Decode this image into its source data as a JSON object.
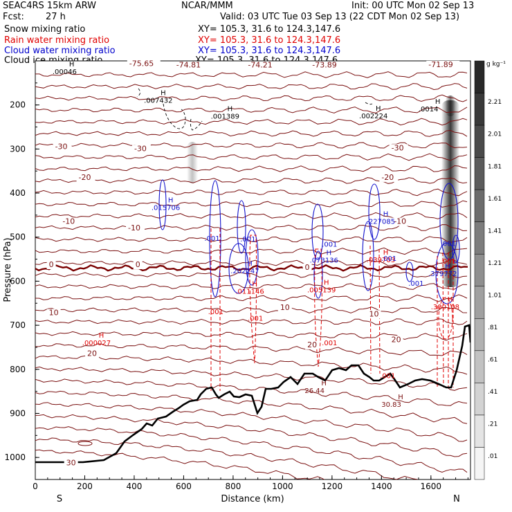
{
  "header": {
    "model": "SEAC4RS 15km ARW",
    "org": "NCAR/MMM",
    "init": "Init: 00 UTC Mon 02 Sep 13",
    "fcst_label": "Fcst:",
    "fcst_value": "27 h",
    "valid": "Valid: 03 UTC Tue 03 Sep 13 (22 CDT Mon 02 Sep 13)",
    "fields": [
      {
        "name": "Snow mixing ratio",
        "xy": "XY= 105.3, 31.6 to 124.3,147.6",
        "color": "#000000"
      },
      {
        "name": "Rain water mixing ratio",
        "xy": "XY= 105.3, 31.6 to 124.3,147.6",
        "color": "#e00000"
      },
      {
        "name": "Cloud water mixing ratio",
        "xy": "XY= 105.3, 31.6 to 124.3,147.6",
        "color": "#0000cc"
      },
      {
        "name": "Cloud ice mixing ratio",
        "xy": "XY= 105.3, 31.6 to 124.3,147.6",
        "color": "#000000"
      }
    ]
  },
  "colors": {
    "temperature": "#7a1010",
    "zero_isotherm": "#7a0000",
    "rain": "#e00000",
    "cloud_water": "#1010cc",
    "terrain": "#000000"
  },
  "chart_data": {
    "type": "cross-section",
    "xlabel": "Distance (km)",
    "ylabel": "Pressure (hPa)",
    "xlim": [
      0,
      1760
    ],
    "ylim": [
      1050,
      100
    ],
    "x_ticks": [
      0,
      200,
      400,
      600,
      800,
      1000,
      1200,
      1400,
      1600
    ],
    "y_ticks": [
      200,
      300,
      400,
      500,
      600,
      700,
      800,
      900,
      1000
    ],
    "endpoints": {
      "left": "S",
      "right": "N"
    },
    "colorbar": {
      "unit": "g kg⁻¹",
      "labels": [
        "2.21",
        "2.01",
        "1.81",
        "1.61",
        "1.41",
        "1.21",
        "1.01",
        ".81",
        ".61",
        ".41",
        ".21",
        ".01"
      ]
    },
    "isotherm_labels": [
      {
        "text": "-75.65",
        "x": 380,
        "p": 112
      },
      {
        "text": "-74.81",
        "x": 570,
        "p": 115
      },
      {
        "text": "-74.21",
        "x": 860,
        "p": 115
      },
      {
        "text": "-73.89",
        "x": 1120,
        "p": 115
      },
      {
        "text": "-71.89",
        "x": 1590,
        "p": 114
      },
      {
        "text": "-30",
        "x": 80,
        "p": 300
      },
      {
        "text": "-30",
        "x": 400,
        "p": 305
      },
      {
        "text": "-30",
        "x": 1440,
        "p": 303
      },
      {
        "text": "-20",
        "x": 175,
        "p": 370
      },
      {
        "text": "-20",
        "x": 1400,
        "p": 370
      },
      {
        "text": "-10",
        "x": 110,
        "p": 470
      },
      {
        "text": "-10",
        "x": 375,
        "p": 485
      },
      {
        "text": "-10",
        "x": 1450,
        "p": 470
      },
      {
        "text": "0",
        "x": 55,
        "p": 568
      },
      {
        "text": "0",
        "x": 405,
        "p": 568
      },
      {
        "text": "0",
        "x": 1090,
        "p": 574
      },
      {
        "text": "10",
        "x": 55,
        "p": 677
      },
      {
        "text": "10",
        "x": 990,
        "p": 665
      },
      {
        "text": "10",
        "x": 1350,
        "p": 680
      },
      {
        "text": "20",
        "x": 210,
        "p": 770
      },
      {
        "text": "20",
        "x": 1100,
        "p": 750
      },
      {
        "text": "20",
        "x": 1440,
        "p": 738
      },
      {
        "text": "30",
        "x": 125,
        "p": 1018
      }
    ],
    "maxima": [
      {
        "text": ".00046",
        "x": 120,
        "p": 130,
        "field": "cloud_ice"
      },
      {
        "text": ".007432",
        "x": 490,
        "p": 195,
        "field": "cloud_ice"
      },
      {
        "text": ".001389",
        "x": 760,
        "p": 231,
        "field": "cloud_ice"
      },
      {
        "text": ".002224",
        "x": 1360,
        "p": 230,
        "field": "cloud_ice"
      },
      {
        "text": ".0014",
        "x": 1600,
        "p": 215,
        "field": "cloud_ice"
      },
      {
        "text": ".015706",
        "x": 520,
        "p": 438,
        "field": "cloud_water"
      },
      {
        "text": ".202247",
        "x": 840,
        "p": 582,
        "field": "cloud_water"
      },
      {
        "text": ".073136",
        "x": 1160,
        "p": 558,
        "field": "cloud_water"
      },
      {
        "text": ".227085",
        "x": 1390,
        "p": 470,
        "field": "cloud_water"
      },
      {
        "text": ".379772",
        "x": 1640,
        "p": 588,
        "field": "cloud_water"
      },
      {
        "text": ".000027",
        "x": 240,
        "p": 745,
        "field": "rain"
      },
      {
        "text": ".011146",
        "x": 860,
        "p": 628,
        "field": "rain"
      },
      {
        "text": ".005139",
        "x": 1150,
        "p": 625,
        "field": "rain"
      },
      {
        "text": ".039703",
        "x": 1390,
        "p": 557,
        "field": "rain"
      },
      {
        "text": ".300108",
        "x": 1650,
        "p": 664,
        "field": "rain"
      },
      {
        "text": "26.44",
        "x": 1140,
        "p": 854,
        "field": "temperature"
      },
      {
        "text": "30.83",
        "x": 1450,
        "p": 885,
        "field": "temperature"
      }
    ],
    "contour_value_labels": [
      {
        "text": ".001",
        "x": 715,
        "p": 508,
        "field": "cloud_water"
      },
      {
        "text": ".001",
        "x": 860,
        "p": 510,
        "field": "cloud_water"
      },
      {
        "text": ".001",
        "x": 1190,
        "p": 522,
        "field": "cloud_water"
      },
      {
        "text": ".001",
        "x": 1430,
        "p": 554,
        "field": "cloud_water"
      },
      {
        "text": ".001",
        "x": 1540,
        "p": 610,
        "field": "cloud_water"
      },
      {
        "text": ".001",
        "x": 1670,
        "p": 520,
        "field": "cloud_water"
      },
      {
        "text": ".001",
        "x": 730,
        "p": 675,
        "field": "rain"
      },
      {
        "text": ".001",
        "x": 890,
        "p": 690,
        "field": "rain"
      },
      {
        "text": ".001",
        "x": 1190,
        "p": 745,
        "field": "rain"
      },
      {
        "text": ".001",
        "x": 1425,
        "p": 820,
        "field": "rain"
      },
      {
        "text": ".001",
        "x": 1670,
        "p": 560,
        "field": "rain"
      }
    ]
  }
}
